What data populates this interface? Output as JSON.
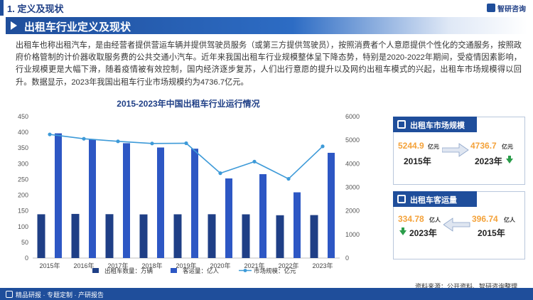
{
  "section": {
    "label": "1. 定义及现状"
  },
  "logo": {
    "text": "智研咨询"
  },
  "title": "出租车行业定义及现状",
  "intro": "出租车也称出租汽车，是由经营者提供营运车辆并提供驾驶员服务（或第三方提供驾驶员），按照消费者个人意愿提供个性化的交通服务，按照政府价格管制的计价器收取服务费的公共交通小汽车。近年来我国出租车行业规模整体呈下降态势，特别是2020-2022年期间，受疫情因素影响，行业规模更是大幅下滑，随着疫情被有效控制，国内经济逐步复苏，人们出行意愿的提升以及网约出租车模式的兴起，出租车市场规模得以回升。数据显示，2023年我国出租车行业市场规模约为4736.7亿元。",
  "chart_data": {
    "type": "bar",
    "title": "2015-2023年中国出租车行业运行情况",
    "categories": [
      "2015年",
      "2016年",
      "2017年",
      "2018年",
      "2019年",
      "2020年",
      "2021年",
      "2022年",
      "2023年"
    ],
    "series": [
      {
        "name": "出租车数量：万辆",
        "type": "bar",
        "axis": "left",
        "color": "#1f3f86",
        "values": [
          139.3,
          140.4,
          139.6,
          138.9,
          139.2,
          139.4,
          139.1,
          136.2,
          136.7
        ]
      },
      {
        "name": "客运量：亿人",
        "type": "bar",
        "axis": "left",
        "color": "#2d57c4",
        "values": [
          396.74,
          377.35,
          365.4,
          351.67,
          347.9,
          253.27,
          266.9,
          209.1,
          334.78
        ]
      },
      {
        "name": "市场规模：亿元",
        "type": "line",
        "axis": "right",
        "color": "#3d9ad8",
        "values": [
          5244.9,
          5060.0,
          4950.0,
          4860.0,
          4870.0,
          3600.0,
          4090.0,
          3360.0,
          4736.7
        ]
      }
    ],
    "ylim_left": [
      0,
      450
    ],
    "yticks_left": [
      0,
      50,
      100,
      150,
      200,
      250,
      300,
      350,
      400,
      450
    ],
    "ylim_right": [
      0,
      6000
    ],
    "yticks_right": [
      0,
      1000,
      2000,
      3000,
      4000,
      5000,
      6000
    ],
    "grid": false,
    "legend": "bottom"
  },
  "card_market": {
    "title": "出租车市场规模",
    "old_value": "5244.9",
    "old_unit": "亿元",
    "old_year": "2015年",
    "new_value": "4736.7",
    "new_unit": "亿元",
    "new_year": "2023年",
    "trend": "down"
  },
  "card_passenger": {
    "title": "出租车客运量",
    "new_value": "334.78",
    "new_unit": "亿人",
    "new_year": "2023年",
    "old_value": "396.74",
    "old_unit": "亿人",
    "old_year": "2015年",
    "trend": "down"
  },
  "footer": {
    "left": "精品研报 · 专题定制 · 产研报告",
    "source": "资料来源：公开资料、智研咨询整理"
  },
  "colors": {
    "brand": "#1f4e9b",
    "accent": "#f4a23a",
    "down": "#2a9d4a"
  }
}
